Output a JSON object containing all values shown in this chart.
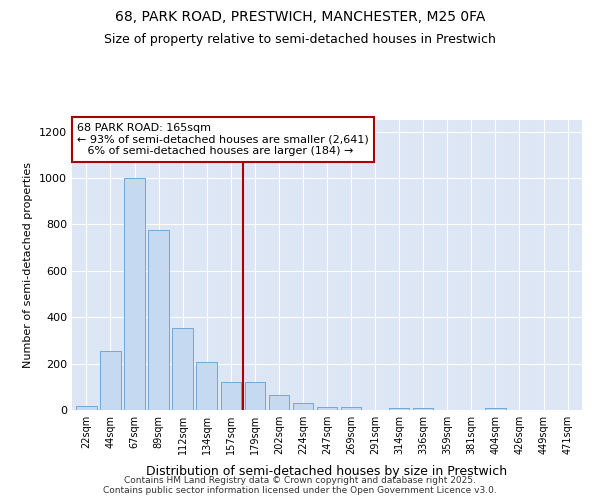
{
  "title_line1": "68, PARK ROAD, PRESTWICH, MANCHESTER, M25 0FA",
  "title_line2": "Size of property relative to semi-detached houses in Prestwich",
  "xlabel": "Distribution of semi-detached houses by size in Prestwich",
  "ylabel": "Number of semi-detached properties",
  "categories": [
    "22sqm",
    "44sqm",
    "67sqm",
    "89sqm",
    "112sqm",
    "134sqm",
    "157sqm",
    "179sqm",
    "202sqm",
    "224sqm",
    "247sqm",
    "269sqm",
    "291sqm",
    "314sqm",
    "336sqm",
    "359sqm",
    "381sqm",
    "404sqm",
    "426sqm",
    "449sqm",
    "471sqm"
  ],
  "values": [
    18,
    255,
    1000,
    775,
    355,
    205,
    120,
    120,
    65,
    30,
    15,
    15,
    0,
    10,
    8,
    0,
    0,
    8,
    0,
    0,
    0
  ],
  "bar_color": "#c5d9f0",
  "bar_edge_color": "#6fa8d5",
  "vline_color": "#aa0000",
  "annotation_text": "68 PARK ROAD: 165sqm\n← 93% of semi-detached houses are smaller (2,641)\n   6% of semi-detached houses are larger (184) →",
  "annotation_box_color": "#ffffff",
  "annotation_box_edge": "#aa0000",
  "ylim": [
    0,
    1250
  ],
  "yticks": [
    0,
    200,
    400,
    600,
    800,
    1000,
    1200
  ],
  "background_color": "#dce6f5",
  "footer_text": "Contains HM Land Registry data © Crown copyright and database right 2025.\nContains public sector information licensed under the Open Government Licence v3.0.",
  "title_fontsize": 10,
  "subtitle_fontsize": 9,
  "vline_index": 7
}
